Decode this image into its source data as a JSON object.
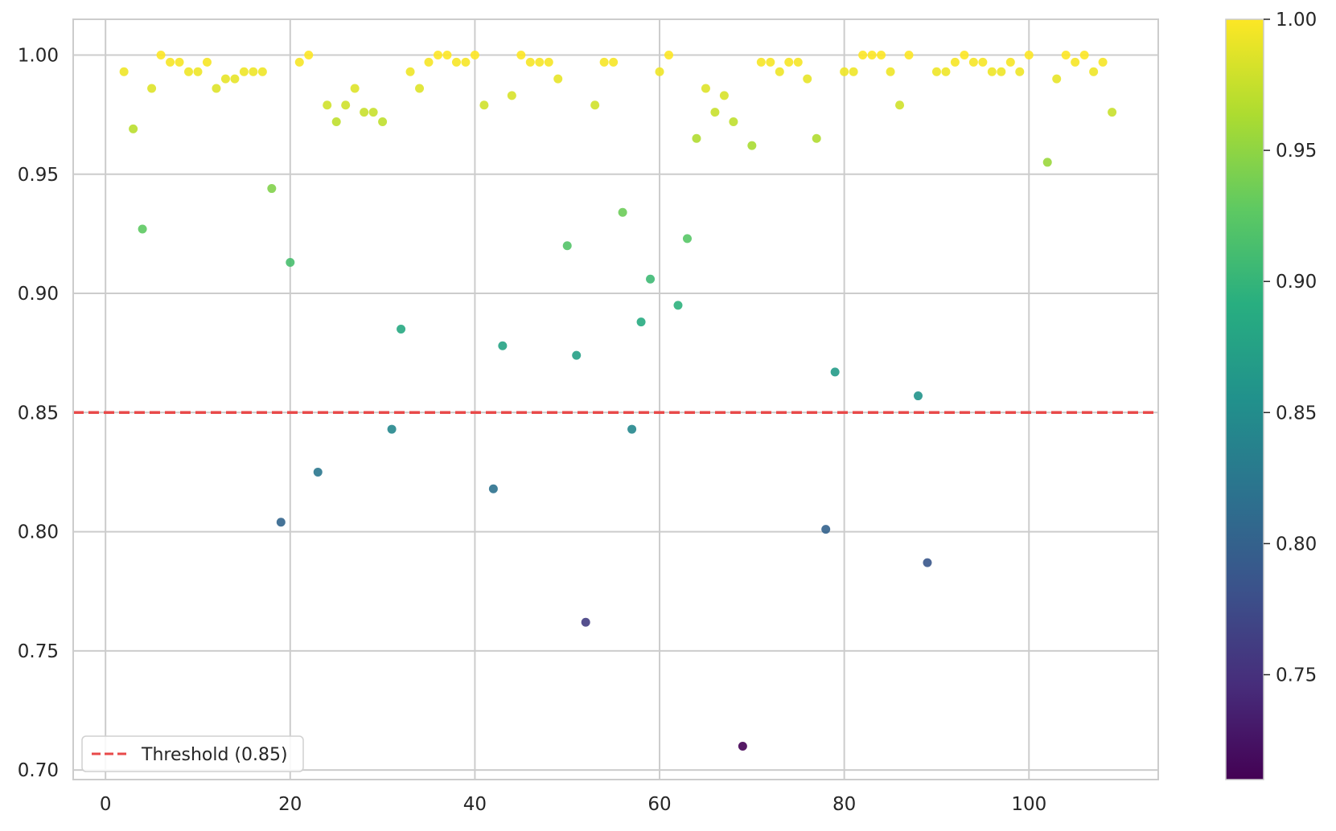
{
  "chart_data": {
    "type": "scatter",
    "title": "",
    "xlabel": "",
    "ylabel": "",
    "xlim": [
      -3.5,
      114
    ],
    "ylim": [
      0.696,
      1.015
    ],
    "x_ticks": [
      0,
      20,
      40,
      60,
      80,
      100
    ],
    "y_ticks": [
      0.7,
      0.75,
      0.8,
      0.85,
      0.9,
      0.95,
      1.0
    ],
    "grid": true,
    "colormap": "viridis",
    "colorbar": {
      "range": [
        0.71,
        1.0
      ],
      "ticks": [
        0.75,
        0.8,
        0.85,
        0.9,
        0.95,
        1.0
      ]
    },
    "threshold": {
      "value": 0.85,
      "label": "Threshold (0.85)",
      "color": "#e84a4a"
    },
    "legend_position": "bottom-left",
    "points": [
      [
        2,
        0.993
      ],
      [
        3,
        0.969
      ],
      [
        4,
        0.927
      ],
      [
        5,
        0.986
      ],
      [
        6,
        1.0
      ],
      [
        7,
        0.997
      ],
      [
        8,
        0.997
      ],
      [
        9,
        0.993
      ],
      [
        10,
        0.993
      ],
      [
        11,
        0.997
      ],
      [
        12,
        0.986
      ],
      [
        13,
        0.99
      ],
      [
        14,
        0.99
      ],
      [
        15,
        0.993
      ],
      [
        16,
        0.993
      ],
      [
        17,
        0.993
      ],
      [
        18,
        0.944
      ],
      [
        19,
        0.804
      ],
      [
        20,
        0.913
      ],
      [
        21,
        0.997
      ],
      [
        22,
        1.0
      ],
      [
        23,
        0.825
      ],
      [
        24,
        0.979
      ],
      [
        25,
        0.972
      ],
      [
        26,
        0.979
      ],
      [
        27,
        0.986
      ],
      [
        28,
        0.976
      ],
      [
        29,
        0.976
      ],
      [
        30,
        0.972
      ],
      [
        31,
        0.843
      ],
      [
        32,
        0.885
      ],
      [
        33,
        0.993
      ],
      [
        34,
        0.986
      ],
      [
        35,
        0.997
      ],
      [
        36,
        1.0
      ],
      [
        37,
        1.0
      ],
      [
        38,
        0.997
      ],
      [
        39,
        0.997
      ],
      [
        40,
        1.0
      ],
      [
        41,
        0.979
      ],
      [
        42,
        0.818
      ],
      [
        43,
        0.878
      ],
      [
        44,
        0.983
      ],
      [
        45,
        1.0
      ],
      [
        46,
        0.997
      ],
      [
        47,
        0.997
      ],
      [
        48,
        0.997
      ],
      [
        49,
        0.99
      ],
      [
        50,
        0.92
      ],
      [
        51,
        0.874
      ],
      [
        52,
        0.762
      ],
      [
        53,
        0.979
      ],
      [
        54,
        0.997
      ],
      [
        55,
        0.997
      ],
      [
        56,
        0.934
      ],
      [
        57,
        0.843
      ],
      [
        58,
        0.888
      ],
      [
        59,
        0.906
      ],
      [
        60,
        0.993
      ],
      [
        61,
        1.0
      ],
      [
        62,
        0.895
      ],
      [
        63,
        0.923
      ],
      [
        64,
        0.965
      ],
      [
        65,
        0.986
      ],
      [
        66,
        0.976
      ],
      [
        67,
        0.983
      ],
      [
        68,
        0.972
      ],
      [
        69,
        0.71
      ],
      [
        70,
        0.962
      ],
      [
        71,
        0.997
      ],
      [
        72,
        0.997
      ],
      [
        73,
        0.993
      ],
      [
        74,
        0.997
      ],
      [
        75,
        0.997
      ],
      [
        76,
        0.99
      ],
      [
        77,
        0.965
      ],
      [
        78,
        0.801
      ],
      [
        79,
        0.867
      ],
      [
        80,
        0.993
      ],
      [
        81,
        0.993
      ],
      [
        82,
        1.0
      ],
      [
        83,
        1.0
      ],
      [
        84,
        1.0
      ],
      [
        85,
        0.993
      ],
      [
        86,
        0.979
      ],
      [
        87,
        1.0
      ],
      [
        88,
        0.857
      ],
      [
        89,
        0.787
      ],
      [
        90,
        0.993
      ],
      [
        91,
        0.993
      ],
      [
        92,
        0.997
      ],
      [
        93,
        1.0
      ],
      [
        94,
        0.997
      ],
      [
        95,
        0.997
      ],
      [
        96,
        0.993
      ],
      [
        97,
        0.993
      ],
      [
        98,
        0.997
      ],
      [
        99,
        0.993
      ],
      [
        100,
        1.0
      ],
      [
        102,
        0.955
      ],
      [
        103,
        0.99
      ],
      [
        104,
        1.0
      ],
      [
        105,
        0.997
      ],
      [
        106,
        1.0
      ],
      [
        107,
        0.993
      ],
      [
        108,
        0.997
      ],
      [
        109,
        0.976
      ]
    ]
  }
}
